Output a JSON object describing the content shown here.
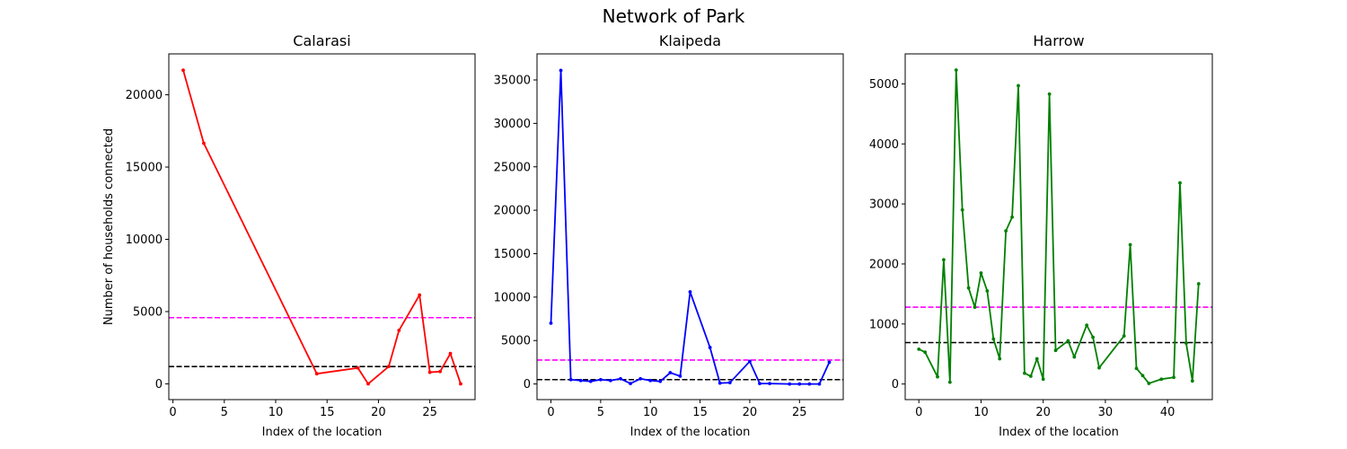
{
  "figure": {
    "title": "Network of Park"
  },
  "chart_data": [
    {
      "type": "line",
      "title": "Calarasi",
      "xlabel": "Index of the location",
      "ylabel": "Number of households connected",
      "xlim": [
        -0.4,
        29.4
      ],
      "ylim": [
        -1090,
        22830
      ],
      "xticks": [
        0,
        5,
        10,
        15,
        20,
        25
      ],
      "yticks": [
        0,
        5000,
        10000,
        15000,
        20000
      ],
      "color": "#ff0000",
      "grid": false,
      "series": [
        {
          "x": [
            1,
            3,
            14,
            18,
            19,
            21,
            22,
            24,
            25,
            26,
            27,
            28
          ],
          "values": [
            21700,
            16650,
            700,
            1100,
            0,
            1200,
            3700,
            6150,
            800,
            850,
            2100,
            0
          ]
        }
      ],
      "hlines": [
        {
          "y": 4580,
          "color": "#ff00ff",
          "style": "dashed"
        },
        {
          "y": 1200,
          "color": "#000000",
          "style": "dashed"
        }
      ]
    },
    {
      "type": "line",
      "title": "Klaipeda",
      "xlabel": "Index of the location",
      "ylabel": "",
      "xlim": [
        -1.4,
        29.4
      ],
      "ylim": [
        -1800,
        38000
      ],
      "xticks": [
        0,
        5,
        10,
        15,
        20,
        25
      ],
      "yticks": [
        0,
        5000,
        10000,
        15000,
        20000,
        25000,
        30000,
        35000
      ],
      "color": "#0000ff",
      "grid": false,
      "series": [
        {
          "x": [
            0,
            1,
            2,
            3,
            4,
            5,
            6,
            7,
            8,
            9,
            10,
            11,
            12,
            13,
            14,
            16,
            17,
            18,
            20,
            21,
            22,
            24,
            25,
            26,
            27,
            28
          ],
          "values": [
            7000,
            36100,
            500,
            400,
            300,
            500,
            400,
            600,
            50,
            600,
            400,
            300,
            1300,
            900,
            10600,
            4200,
            100,
            150,
            2600,
            50,
            50,
            0,
            0,
            0,
            0,
            2500
          ]
        }
      ],
      "hlines": [
        {
          "y": 2750,
          "color": "#ff00ff",
          "style": "dashed"
        },
        {
          "y": 500,
          "color": "#000000",
          "style": "dashed"
        }
      ]
    },
    {
      "type": "line",
      "title": "Harrow",
      "xlabel": "Index of the location",
      "ylabel": "",
      "xlim": [
        -2.2,
        47.2
      ],
      "ylim": [
        -260,
        5500
      ],
      "xticks": [
        0,
        10,
        20,
        30,
        40
      ],
      "yticks": [
        0,
        1000,
        2000,
        3000,
        4000,
        5000
      ],
      "color": "#008000",
      "grid": false,
      "series": [
        {
          "x": [
            0,
            1,
            3,
            4,
            5,
            6,
            7,
            8,
            9,
            10,
            11,
            12,
            13,
            14,
            15,
            16,
            17,
            18,
            19,
            20,
            21,
            22,
            24,
            25,
            27,
            28,
            29,
            33,
            34,
            35,
            36,
            37,
            39,
            41,
            42,
            43,
            44,
            45
          ],
          "values": [
            580,
            530,
            120,
            2070,
            30,
            5230,
            2900,
            1600,
            1280,
            1850,
            1550,
            750,
            420,
            2550,
            2780,
            4970,
            180,
            130,
            420,
            80,
            4830,
            560,
            720,
            450,
            980,
            780,
            270,
            800,
            2320,
            260,
            140,
            10,
            80,
            110,
            3350,
            680,
            50,
            1670
          ]
        }
      ],
      "hlines": [
        {
          "y": 1280,
          "color": "#ff00ff",
          "style": "dashed"
        },
        {
          "y": 690,
          "color": "#000000",
          "style": "dashed"
        }
      ]
    }
  ]
}
